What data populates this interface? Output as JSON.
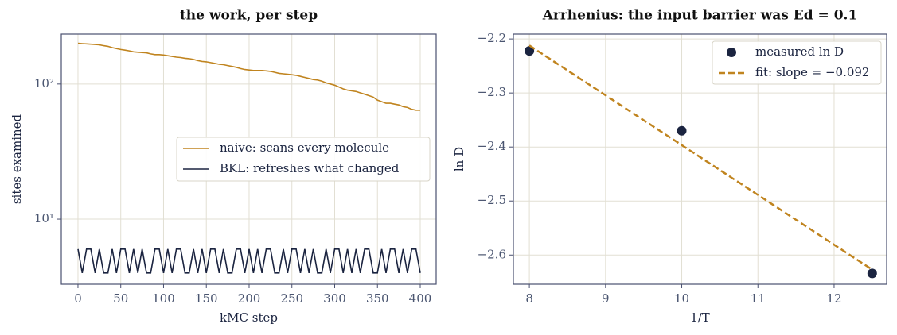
{
  "chart_data": [
    {
      "type": "line",
      "title": "the work, per step",
      "xlabel": "kMC step",
      "ylabel": "sites examined",
      "x": [
        0,
        5,
        10,
        15,
        20,
        25,
        30,
        35,
        40,
        45,
        50,
        55,
        60,
        65,
        70,
        75,
        80,
        85,
        90,
        95,
        100,
        105,
        110,
        115,
        120,
        125,
        130,
        135,
        140,
        145,
        150,
        155,
        160,
        165,
        170,
        175,
        180,
        185,
        190,
        195,
        200,
        205,
        210,
        215,
        220,
        225,
        230,
        235,
        240,
        245,
        250,
        255,
        260,
        265,
        270,
        275,
        280,
        285,
        290,
        295,
        300,
        305,
        310,
        315,
        320,
        325,
        330,
        335,
        340,
        345,
        350,
        355,
        360,
        365,
        370,
        375,
        380,
        385,
        390,
        395,
        400
      ],
      "series": [
        {
          "name": "naive: scans every molecule",
          "color": "#c0841f",
          "values": [
            200,
            199,
            198,
            197,
            196,
            195,
            192,
            190,
            186,
            183,
            180,
            178,
            176,
            173,
            172,
            171,
            170,
            167,
            165,
            165,
            164,
            162,
            160,
            158,
            157,
            155,
            154,
            152,
            149,
            147,
            146,
            144,
            142,
            140,
            139,
            137,
            135,
            133,
            130,
            128,
            127,
            126,
            126,
            126,
            125,
            124,
            122,
            120,
            119,
            118,
            117,
            116,
            114,
            112,
            110,
            108,
            107,
            105,
            102,
            100,
            98,
            95,
            92,
            90,
            89,
            88,
            86,
            84,
            82,
            80,
            76,
            74,
            72,
            72,
            71,
            70,
            68,
            67,
            65,
            64,
            64
          ]
        },
        {
          "name": "BKL: refreshes what changed",
          "color": "#1b2440",
          "values": [
            6,
            4,
            6,
            6,
            4,
            6,
            4,
            4,
            6,
            4,
            6,
            6,
            4,
            6,
            4,
            6,
            4,
            4,
            6,
            6,
            4,
            6,
            4,
            6,
            6,
            4,
            4,
            6,
            4,
            6,
            4,
            6,
            6,
            4,
            6,
            4,
            4,
            6,
            6,
            4,
            6,
            4,
            6,
            4,
            6,
            6,
            4,
            4,
            6,
            4,
            6,
            6,
            4,
            6,
            4,
            6,
            4,
            4,
            6,
            4,
            6,
            6,
            4,
            6,
            4,
            6,
            4,
            6,
            6,
            4,
            4,
            6,
            4,
            6,
            6,
            4,
            6,
            4,
            6,
            6,
            4
          ]
        }
      ],
      "xlim": [
        -19.5,
        418.6
      ],
      "ylim": [
        3.3,
        234
      ],
      "log_y": true,
      "grid": true,
      "legend": "center right",
      "xticks": [
        0,
        50,
        100,
        150,
        200,
        250,
        300,
        350,
        400
      ],
      "yticks": [
        {
          "value": 10,
          "label": "10¹"
        },
        {
          "value": 100,
          "label": "10²"
        }
      ]
    },
    {
      "type": "scatter",
      "title": "Arrhenius: the input barrier was Ed = 0.1",
      "xlabel": "1/T",
      "ylabel": "ln D",
      "series": [
        {
          "name": "measured ln D",
          "type": "scatter",
          "color": "#1b2440",
          "x": [
            8,
            10,
            12.5
          ],
          "values": [
            -2.222,
            -2.37,
            -2.634
          ]
        },
        {
          "name": "fit: slope = −0.092",
          "type": "line",
          "dashed": true,
          "color": "#c0841f",
          "x": [
            8,
            12.5
          ],
          "values": [
            -2.212,
            -2.627
          ]
        }
      ],
      "xlim": [
        7.79,
        12.69
      ],
      "ylim": [
        -2.654,
        -2.191
      ],
      "grid": true,
      "legend": "upper right",
      "xticks": [
        8,
        9,
        10,
        11,
        12
      ],
      "yticks": [
        {
          "value": -2.2,
          "label": "−2.2"
        },
        {
          "value": -2.3,
          "label": "−2.3"
        },
        {
          "value": -2.4,
          "label": "−2.4"
        },
        {
          "value": -2.5,
          "label": "−2.5"
        },
        {
          "value": -2.6,
          "label": "−2.6"
        }
      ]
    }
  ]
}
